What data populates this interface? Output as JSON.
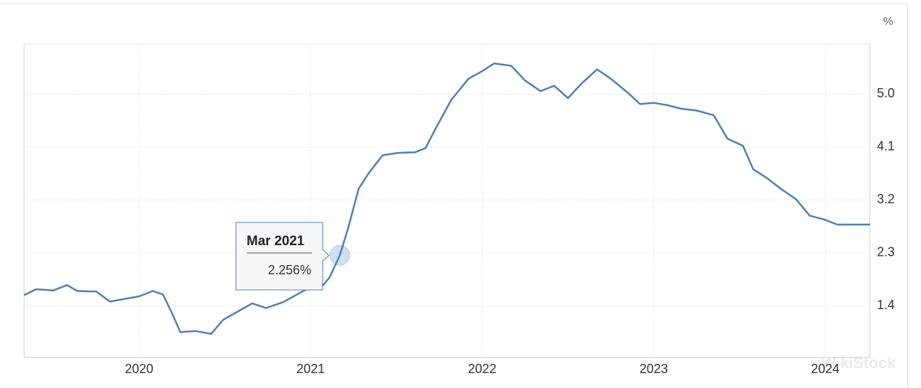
{
  "chart_data": {
    "type": "line",
    "y_unit": "%",
    "watermark": "WikiStock",
    "x": [
      2019.33,
      2019.4,
      2019.5,
      2019.58,
      2019.64,
      2019.75,
      2019.83,
      2020.0,
      2020.08,
      2020.14,
      2020.2,
      2020.24,
      2020.33,
      2020.42,
      2020.49,
      2020.66,
      2020.74,
      2020.84,
      2020.97,
      2021.07,
      2021.11,
      2021.17,
      2021.22,
      2021.28,
      2021.34,
      2021.42,
      2021.51,
      2021.61,
      2021.67,
      2021.73,
      2021.82,
      2021.92,
      2022.0,
      2022.07,
      2022.17,
      2022.25,
      2022.34,
      2022.42,
      2022.5,
      2022.58,
      2022.67,
      2022.75,
      2022.85,
      2022.92,
      2023.0,
      2023.08,
      2023.16,
      2023.25,
      2023.35,
      2023.43,
      2023.52,
      2023.58,
      2023.66,
      2023.74,
      2023.83,
      2023.91,
      2023.99,
      2024.07,
      2024.26
    ],
    "series": [
      {
        "color": "#4f7fb4",
        "values": [
          1.58,
          1.68,
          1.66,
          1.75,
          1.65,
          1.64,
          1.47,
          1.56,
          1.65,
          1.59,
          1.22,
          0.95,
          0.97,
          0.92,
          1.16,
          1.44,
          1.36,
          1.46,
          1.67,
          1.74,
          1.88,
          2.256,
          2.73,
          3.39,
          3.66,
          3.96,
          4.0,
          4.01,
          4.08,
          4.42,
          4.9,
          5.26,
          5.39,
          5.52,
          5.48,
          5.23,
          5.05,
          5.14,
          4.93,
          5.18,
          5.42,
          5.26,
          5.02,
          4.83,
          4.85,
          4.81,
          4.75,
          4.72,
          4.64,
          4.24,
          4.12,
          3.72,
          3.57,
          3.39,
          3.21,
          2.93,
          2.87,
          2.78,
          2.78
        ]
      }
    ],
    "xlim": [
      2019.33,
      2024.26
    ],
    "xticks": [
      2020,
      2021,
      2022,
      2023,
      2024
    ],
    "ylim": [
      0.52,
      5.85
    ],
    "yticks": [
      1.4,
      2.3,
      3.2,
      4.1,
      {
        "value": 5,
        "label": "5.0"
      }
    ],
    "grid": true,
    "tooltip": {
      "title": "Mar 2021",
      "x": 2021.17,
      "value": 2.256,
      "value_label": "2.256%"
    }
  }
}
